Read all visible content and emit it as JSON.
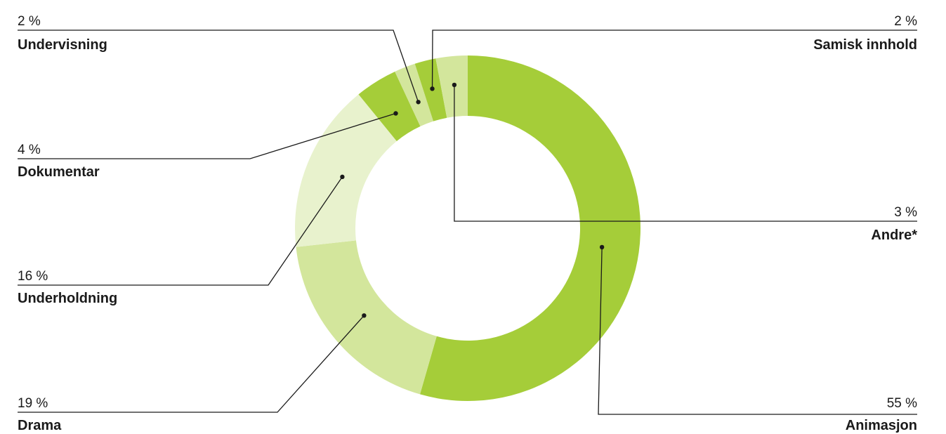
{
  "chart_data": {
    "type": "pie",
    "variant": "donut",
    "categories": [
      "Animasjon",
      "Drama",
      "Underholdning",
      "Dokumentar",
      "Undervisning",
      "Samisk innhold",
      "Andre*"
    ],
    "values": [
      55,
      19,
      16,
      4,
      2,
      2,
      3
    ],
    "value_labels": [
      "55 %",
      "19 %",
      "16 %",
      "4 %",
      "2 %",
      "2 %",
      "3 %"
    ],
    "colors": [
      "#a5cd39",
      "#d3e69c",
      "#e8f2cd",
      "#a5cd39",
      "#d3e69c",
      "#a5cd39",
      "#d3e69c"
    ],
    "legend": "none",
    "title": ""
  }
}
